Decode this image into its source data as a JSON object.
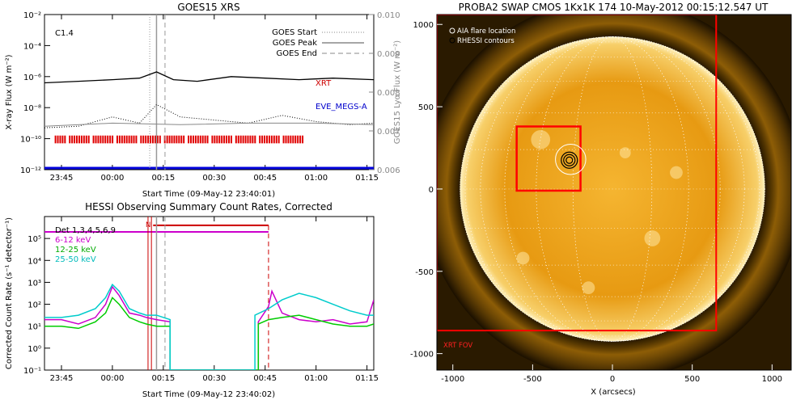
{
  "chart_data": [
    {
      "type": "line",
      "title": "GOES15 XRS",
      "xlabel": "Start Time (09-May-12 23:40:01)",
      "ylabel_left": "X-ray Flux (W m⁻²)",
      "ylabel_right": "GOES15 Lyα Flux (W m⁻²)",
      "x_ticks": [
        "23:45",
        "00:00",
        "00:15",
        "00:30",
        "00:45",
        "01:00",
        "01:15"
      ],
      "x_tick_minutes": [
        5,
        20,
        35,
        50,
        65,
        80,
        95
      ],
      "xlim_minutes": [
        0,
        97
      ],
      "y_ticks_left": [
        "10⁻²",
        "10⁻⁴",
        "10⁻⁶",
        "10⁻⁸",
        "10⁻¹⁰",
        "10⁻¹²"
      ],
      "ylim_left_log10": [
        -12,
        -2
      ],
      "y_ticks_right": [
        "0.010",
        "0.009",
        "0.008",
        "0.007",
        "0.006"
      ],
      "ylim_right": [
        0.006,
        0.01
      ],
      "flare_class": "C1.4",
      "legend": [
        "GOES Start",
        "GOES Peak",
        "GOES End"
      ],
      "legend_styles": [
        "dotted",
        "solid",
        "dashed"
      ],
      "event_times_minutes": {
        "start": 31,
        "peak": 33,
        "end": 35.5
      },
      "series": [
        {
          "name": "XRT",
          "color": "#cc0000",
          "x": [
            0,
            10,
            20,
            28,
            33,
            38,
            45,
            55,
            65,
            75,
            85,
            97
          ],
          "log10_y": [
            -6.4,
            -6.3,
            -6.2,
            -6.1,
            -5.7,
            -6.2,
            -6.3,
            -6.0,
            -6.1,
            -6.2,
            -6.1,
            -6.2
          ]
        },
        {
          "name": "EVE_MEGS-A",
          "color": "#0000cc",
          "x": [
            0,
            10,
            20,
            28,
            33,
            40,
            50,
            60,
            70,
            80,
            90,
            97
          ],
          "log10_y": [
            -9.3,
            -9.2,
            -8.6,
            -9.0,
            -7.8,
            -8.6,
            -8.8,
            -9.0,
            -8.5,
            -8.9,
            -9.1,
            -9.0
          ]
        },
        {
          "name": "",
          "color": "#999999",
          "x": [
            0,
            20,
            40,
            60,
            80,
            97
          ],
          "log10_y": [
            -9.2,
            -9.0,
            -9.1,
            -9.0,
            -9.0,
            -9.1
          ]
        }
      ],
      "xrt_coverage_minutes": [
        3,
        76
      ],
      "bottom_line_log10": -12
    },
    {
      "type": "line",
      "title": "HESSI Observing Summary Count Rates, Corrected",
      "xlabel": "Start Time (09-May-12 23:40:02)",
      "ylabel": "Corrected Count Rate (s⁻¹ detector⁻¹)",
      "x_ticks": [
        "23:45",
        "00:00",
        "00:15",
        "00:30",
        "00:45",
        "01:00",
        "01:15"
      ],
      "x_tick_minutes": [
        5,
        20,
        35,
        50,
        65,
        80,
        95
      ],
      "xlim_minutes": [
        0,
        97
      ],
      "y_ticks": [
        "10⁵",
        "10⁴",
        "10³",
        "10²",
        "10¹",
        "10⁰",
        "10⁻¹"
      ],
      "ylim_log10": [
        -1,
        6
      ],
      "legend": [
        "Det 1,3,4,5,6,9",
        "6-12 keV",
        "12-25 keV",
        "25-50 keV"
      ],
      "legend_colors": [
        "#cc00cc",
        "#cc00cc",
        "#00cc00",
        "#00cccc"
      ],
      "annotations": [
        "N"
      ],
      "series": [
        {
          "name": "6-12 keV",
          "color": "#cc00cc",
          "x": [
            0,
            5,
            10,
            15,
            18,
            20,
            22,
            25,
            28,
            30,
            33,
            37,
            37,
            63,
            63,
            66,
            67,
            70,
            75,
            80,
            85,
            90,
            95,
            97
          ],
          "log10_y": [
            1.3,
            1.3,
            1.1,
            1.4,
            2.0,
            2.8,
            2.4,
            1.6,
            1.5,
            1.4,
            1.3,
            1.2,
            -1,
            -1,
            1.2,
            1.9,
            2.6,
            1.6,
            1.3,
            1.2,
            1.3,
            1.1,
            1.2,
            2.2
          ]
        },
        {
          "name": "12-25 keV",
          "color": "#00cc00",
          "x": [
            0,
            5,
            10,
            15,
            18,
            20,
            22,
            25,
            28,
            30,
            33,
            37,
            37,
            63,
            63,
            66,
            70,
            75,
            80,
            85,
            90,
            95,
            97
          ],
          "log10_y": [
            1.0,
            1.0,
            0.9,
            1.2,
            1.6,
            2.3,
            2.0,
            1.4,
            1.2,
            1.1,
            1.0,
            1.0,
            -1,
            -1,
            1.1,
            1.3,
            1.4,
            1.5,
            1.3,
            1.1,
            1.0,
            1.0,
            1.1
          ]
        },
        {
          "name": "25-50 keV",
          "color": "#00cccc",
          "x": [
            0,
            5,
            10,
            15,
            18,
            20,
            22,
            25,
            28,
            30,
            33,
            37,
            37,
            62,
            62,
            66,
            70,
            75,
            80,
            85,
            90,
            95,
            97
          ],
          "log10_y": [
            1.4,
            1.4,
            1.5,
            1.8,
            2.3,
            2.9,
            2.6,
            1.8,
            1.6,
            1.5,
            1.5,
            1.3,
            -1,
            -1,
            1.5,
            1.8,
            2.2,
            2.5,
            2.3,
            2.0,
            1.7,
            1.5,
            1.5
          ]
        }
      ],
      "saa_bar_minutes": [
        0,
        66
      ],
      "saa_bar_log10": 5.3,
      "night_bar_minutes": [
        32,
        66
      ],
      "night_bar_log10": 5.6
    },
    {
      "type": "heatmap",
      "title": "PROBA2 SWAP CMOS 1Kx1K 174 10-May-2012 00:15:12.547 UT",
      "xlabel": "X (arcsecs)",
      "ylabel": "",
      "x_ticks": [
        "-1000",
        "-500",
        "0",
        "500",
        "1000"
      ],
      "x_tick_values": [
        -1000,
        -500,
        0,
        500,
        1000
      ],
      "xlim": [
        -1100,
        1120
      ],
      "y_ticks": [
        "1000",
        "500",
        "0",
        "-500",
        "-1000"
      ],
      "y_tick_values": [
        1000,
        500,
        0,
        -500,
        -1000
      ],
      "ylim": [
        -1100,
        1060
      ],
      "legend": [
        "AIA flare location",
        "RHESSI contours"
      ],
      "annotations": [
        "XRT FOV"
      ],
      "solar_radius_arcsec": 955,
      "aia_flare_location": [
        -262,
        180
      ],
      "rhessi_contours_center": [
        -270,
        175
      ],
      "red_box": {
        "x": [
          -600,
          -200
        ],
        "y": [
          -10,
          380
        ]
      },
      "xrt_fov": {
        "x": [
          -1100,
          650
        ],
        "y": [
          -860,
          1060
        ]
      }
    }
  ]
}
